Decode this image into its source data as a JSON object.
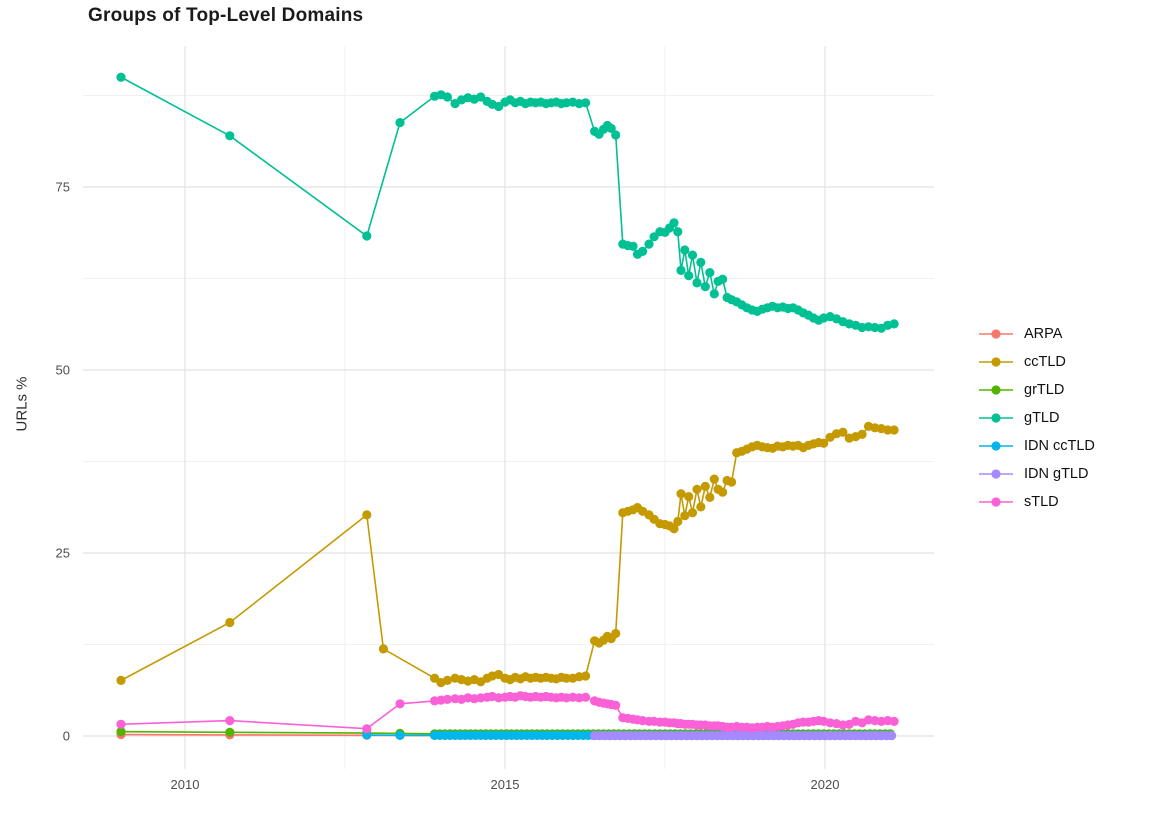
{
  "chart_data": {
    "type": "line",
    "markers": true,
    "title": "Groups of Top-Level Domains",
    "xlabel": "",
    "ylabel": "URLs %",
    "x_ticks": [
      2010,
      2015,
      2020
    ],
    "x_minor_ticks": [
      2012.5,
      2017.5
    ],
    "y_ticks": [
      0,
      25,
      50,
      75
    ],
    "y_minor_ticks": [
      12.5,
      37.5,
      62.5,
      87.5
    ],
    "xlim": [
      2008.4,
      2021.7
    ],
    "ylim": [
      -4.5,
      94.3
    ],
    "grid": true,
    "legend_position": "right",
    "series": [
      {
        "name": "ARPA",
        "color": "#F8766D",
        "points": [
          [
            2009.0,
            0.2
          ],
          [
            2010.7,
            0.15
          ],
          [
            2012.84,
            0.1
          ],
          [
            2013.36,
            0.08
          ]
        ],
        "flat_segment": {
          "from": 2013.9,
          "to": 2016.3,
          "step": 0.08,
          "value": 0.08
        }
      },
      {
        "name": "ccTLD",
        "color": "#C49A00",
        "points": [
          [
            2009.0,
            7.6
          ],
          [
            2010.7,
            15.5
          ],
          [
            2012.84,
            30.2
          ],
          [
            2013.1,
            11.9
          ],
          [
            2013.9,
            7.9
          ],
          [
            2014.0,
            7.3
          ],
          [
            2014.1,
            7.6
          ],
          [
            2014.22,
            7.9
          ],
          [
            2014.32,
            7.7
          ],
          [
            2014.42,
            7.5
          ],
          [
            2014.52,
            7.7
          ],
          [
            2014.62,
            7.4
          ],
          [
            2014.72,
            7.9
          ],
          [
            2014.8,
            8.2
          ],
          [
            2014.9,
            8.4
          ],
          [
            2015.0,
            7.9
          ],
          [
            2015.08,
            7.7
          ],
          [
            2015.16,
            8.0
          ],
          [
            2015.24,
            7.8
          ],
          [
            2015.32,
            8.1
          ],
          [
            2015.4,
            7.9
          ],
          [
            2015.48,
            8.0
          ],
          [
            2015.56,
            7.9
          ],
          [
            2015.64,
            8.0
          ],
          [
            2015.72,
            7.9
          ],
          [
            2015.8,
            7.8
          ],
          [
            2015.88,
            8.0
          ],
          [
            2015.96,
            7.9
          ],
          [
            2016.06,
            7.9
          ],
          [
            2016.16,
            8.1
          ],
          [
            2016.26,
            8.2
          ],
          [
            2016.4,
            13.0
          ],
          [
            2016.47,
            12.7
          ],
          [
            2016.54,
            13.1
          ],
          [
            2016.6,
            13.6
          ],
          [
            2016.66,
            13.3
          ],
          [
            2016.73,
            14.0
          ],
          [
            2016.84,
            30.5
          ],
          [
            2016.92,
            30.7
          ],
          [
            2017.0,
            30.9
          ],
          [
            2017.07,
            31.2
          ],
          [
            2017.15,
            30.7
          ],
          [
            2017.25,
            30.2
          ],
          [
            2017.33,
            29.6
          ],
          [
            2017.42,
            29.0
          ],
          [
            2017.5,
            28.9
          ],
          [
            2017.57,
            28.7
          ],
          [
            2017.64,
            28.3
          ],
          [
            2017.7,
            29.3
          ],
          [
            2017.75,
            33.1
          ],
          [
            2017.81,
            30.1
          ],
          [
            2017.87,
            32.7
          ],
          [
            2017.93,
            30.5
          ],
          [
            2018.0,
            33.7
          ],
          [
            2018.06,
            31.3
          ],
          [
            2018.13,
            34.1
          ],
          [
            2018.2,
            32.6
          ],
          [
            2018.27,
            35.1
          ],
          [
            2018.33,
            33.7
          ],
          [
            2018.4,
            33.3
          ],
          [
            2018.47,
            34.9
          ],
          [
            2018.54,
            34.7
          ],
          [
            2018.62,
            38.7
          ],
          [
            2018.7,
            38.9
          ],
          [
            2018.78,
            39.2
          ],
          [
            2018.86,
            39.5
          ],
          [
            2018.94,
            39.7
          ],
          [
            2019.02,
            39.5
          ],
          [
            2019.1,
            39.4
          ],
          [
            2019.18,
            39.3
          ],
          [
            2019.26,
            39.6
          ],
          [
            2019.34,
            39.5
          ],
          [
            2019.42,
            39.7
          ],
          [
            2019.5,
            39.6
          ],
          [
            2019.58,
            39.7
          ],
          [
            2019.66,
            39.4
          ],
          [
            2019.74,
            39.7
          ],
          [
            2019.82,
            39.9
          ],
          [
            2019.9,
            40.1
          ],
          [
            2019.98,
            40.0
          ],
          [
            2020.08,
            40.8
          ],
          [
            2020.18,
            41.3
          ],
          [
            2020.28,
            41.5
          ],
          [
            2020.38,
            40.7
          ],
          [
            2020.48,
            40.9
          ],
          [
            2020.58,
            41.2
          ],
          [
            2020.68,
            42.3
          ],
          [
            2020.78,
            42.1
          ],
          [
            2020.88,
            42.0
          ],
          [
            2020.98,
            41.8
          ],
          [
            2021.08,
            41.8
          ]
        ]
      },
      {
        "name": "grTLD",
        "color": "#53B400",
        "points": [
          [
            2009.0,
            0.6
          ],
          [
            2010.7,
            0.5
          ],
          [
            2012.84,
            0.4
          ],
          [
            2013.36,
            0.35
          ]
        ],
        "flat_segment": {
          "from": 2013.9,
          "to": 2021.08,
          "step": 0.08,
          "value": 0.3
        }
      },
      {
        "name": "gTLD",
        "color": "#00C094",
        "points": [
          [
            2009.0,
            90.0
          ],
          [
            2010.7,
            82.0
          ],
          [
            2012.84,
            68.3
          ],
          [
            2013.36,
            83.8
          ],
          [
            2013.9,
            87.4
          ],
          [
            2014.0,
            87.6
          ],
          [
            2014.1,
            87.3
          ],
          [
            2014.22,
            86.4
          ],
          [
            2014.32,
            86.9
          ],
          [
            2014.42,
            87.2
          ],
          [
            2014.52,
            87.0
          ],
          [
            2014.62,
            87.3
          ],
          [
            2014.72,
            86.7
          ],
          [
            2014.8,
            86.3
          ],
          [
            2014.9,
            86.0
          ],
          [
            2015.0,
            86.6
          ],
          [
            2015.08,
            86.9
          ],
          [
            2015.16,
            86.5
          ],
          [
            2015.24,
            86.7
          ],
          [
            2015.32,
            86.4
          ],
          [
            2015.4,
            86.6
          ],
          [
            2015.48,
            86.5
          ],
          [
            2015.56,
            86.6
          ],
          [
            2015.64,
            86.4
          ],
          [
            2015.72,
            86.5
          ],
          [
            2015.8,
            86.6
          ],
          [
            2015.88,
            86.4
          ],
          [
            2015.96,
            86.5
          ],
          [
            2016.06,
            86.6
          ],
          [
            2016.16,
            86.4
          ],
          [
            2016.26,
            86.5
          ],
          [
            2016.4,
            82.6
          ],
          [
            2016.47,
            82.2
          ],
          [
            2016.54,
            82.9
          ],
          [
            2016.6,
            83.4
          ],
          [
            2016.66,
            83.0
          ],
          [
            2016.73,
            82.1
          ],
          [
            2016.84,
            67.2
          ],
          [
            2016.92,
            67.0
          ],
          [
            2017.0,
            66.9
          ],
          [
            2017.07,
            65.8
          ],
          [
            2017.15,
            66.2
          ],
          [
            2017.25,
            67.2
          ],
          [
            2017.33,
            68.2
          ],
          [
            2017.42,
            68.9
          ],
          [
            2017.5,
            68.8
          ],
          [
            2017.57,
            69.4
          ],
          [
            2017.64,
            70.1
          ],
          [
            2017.7,
            68.9
          ],
          [
            2017.75,
            63.6
          ],
          [
            2017.81,
            66.4
          ],
          [
            2017.87,
            62.9
          ],
          [
            2017.93,
            65.7
          ],
          [
            2018.0,
            61.9
          ],
          [
            2018.06,
            64.7
          ],
          [
            2018.13,
            61.4
          ],
          [
            2018.2,
            63.3
          ],
          [
            2018.27,
            60.4
          ],
          [
            2018.33,
            62.1
          ],
          [
            2018.4,
            62.4
          ],
          [
            2018.47,
            59.9
          ],
          [
            2018.54,
            59.6
          ],
          [
            2018.62,
            59.3
          ],
          [
            2018.7,
            58.9
          ],
          [
            2018.78,
            58.5
          ],
          [
            2018.86,
            58.2
          ],
          [
            2018.94,
            58.0
          ],
          [
            2019.02,
            58.3
          ],
          [
            2019.1,
            58.5
          ],
          [
            2019.18,
            58.7
          ],
          [
            2019.26,
            58.5
          ],
          [
            2019.34,
            58.6
          ],
          [
            2019.42,
            58.4
          ],
          [
            2019.5,
            58.5
          ],
          [
            2019.58,
            58.2
          ],
          [
            2019.66,
            57.8
          ],
          [
            2019.74,
            57.5
          ],
          [
            2019.82,
            57.1
          ],
          [
            2019.9,
            56.8
          ],
          [
            2019.98,
            57.1
          ],
          [
            2020.08,
            57.3
          ],
          [
            2020.18,
            57.0
          ],
          [
            2020.28,
            56.6
          ],
          [
            2020.38,
            56.3
          ],
          [
            2020.48,
            56.1
          ],
          [
            2020.58,
            55.8
          ],
          [
            2020.68,
            55.9
          ],
          [
            2020.78,
            55.8
          ],
          [
            2020.88,
            55.7
          ],
          [
            2020.98,
            56.1
          ],
          [
            2021.08,
            56.3
          ]
        ]
      },
      {
        "name": "IDN ccTLD",
        "color": "#00B6EB",
        "points": [
          [
            2012.84,
            0.15
          ],
          [
            2013.36,
            0.1
          ]
        ],
        "flat_segment": {
          "from": 2013.9,
          "to": 2021.08,
          "step": 0.08,
          "value": 0.08
        }
      },
      {
        "name": "IDN gTLD",
        "color": "#A58AFF",
        "points": [],
        "flat_segment": {
          "from": 2016.4,
          "to": 2021.08,
          "step": 0.08,
          "value": 0.05
        }
      },
      {
        "name": "sTLD",
        "color": "#FB61D7",
        "points": [
          [
            2009.0,
            1.6
          ],
          [
            2010.7,
            2.1
          ],
          [
            2012.84,
            1.0
          ],
          [
            2013.36,
            4.4
          ],
          [
            2013.9,
            4.8
          ],
          [
            2014.0,
            4.9
          ],
          [
            2014.1,
            5.0
          ],
          [
            2014.22,
            5.1
          ],
          [
            2014.32,
            5.0
          ],
          [
            2014.42,
            5.2
          ],
          [
            2014.52,
            5.1
          ],
          [
            2014.62,
            5.2
          ],
          [
            2014.72,
            5.3
          ],
          [
            2014.8,
            5.4
          ],
          [
            2014.9,
            5.2
          ],
          [
            2015.0,
            5.3
          ],
          [
            2015.08,
            5.4
          ],
          [
            2015.16,
            5.3
          ],
          [
            2015.24,
            5.5
          ],
          [
            2015.32,
            5.4
          ],
          [
            2015.4,
            5.3
          ],
          [
            2015.48,
            5.4
          ],
          [
            2015.56,
            5.3
          ],
          [
            2015.64,
            5.4
          ],
          [
            2015.72,
            5.3
          ],
          [
            2015.8,
            5.2
          ],
          [
            2015.88,
            5.3
          ],
          [
            2015.96,
            5.2
          ],
          [
            2016.06,
            5.3
          ],
          [
            2016.16,
            5.2
          ],
          [
            2016.26,
            5.3
          ],
          [
            2016.4,
            4.8
          ],
          [
            2016.47,
            4.6
          ],
          [
            2016.54,
            4.5
          ],
          [
            2016.6,
            4.4
          ],
          [
            2016.66,
            4.3
          ],
          [
            2016.73,
            4.2
          ],
          [
            2016.84,
            2.5
          ],
          [
            2016.92,
            2.4
          ],
          [
            2017.0,
            2.3
          ],
          [
            2017.07,
            2.2
          ],
          [
            2017.15,
            2.1
          ],
          [
            2017.25,
            2.0
          ],
          [
            2017.33,
            2.0
          ],
          [
            2017.42,
            1.9
          ],
          [
            2017.5,
            1.9
          ],
          [
            2017.57,
            1.8
          ],
          [
            2017.64,
            1.8
          ],
          [
            2017.7,
            1.7
          ],
          [
            2017.75,
            1.7
          ],
          [
            2017.81,
            1.6
          ],
          [
            2017.87,
            1.6
          ],
          [
            2017.93,
            1.6
          ],
          [
            2018.0,
            1.5
          ],
          [
            2018.06,
            1.5
          ],
          [
            2018.13,
            1.5
          ],
          [
            2018.2,
            1.4
          ],
          [
            2018.27,
            1.4
          ],
          [
            2018.33,
            1.4
          ],
          [
            2018.4,
            1.3
          ],
          [
            2018.47,
            1.2
          ],
          [
            2018.54,
            1.2
          ],
          [
            2018.62,
            1.3
          ],
          [
            2018.7,
            1.2
          ],
          [
            2018.78,
            1.2
          ],
          [
            2018.86,
            1.1
          ],
          [
            2018.94,
            1.2
          ],
          [
            2019.02,
            1.2
          ],
          [
            2019.1,
            1.3
          ],
          [
            2019.18,
            1.2
          ],
          [
            2019.26,
            1.3
          ],
          [
            2019.34,
            1.4
          ],
          [
            2019.42,
            1.5
          ],
          [
            2019.5,
            1.6
          ],
          [
            2019.58,
            1.8
          ],
          [
            2019.66,
            1.9
          ],
          [
            2019.74,
            1.9
          ],
          [
            2019.82,
            2.0
          ],
          [
            2019.9,
            2.1
          ],
          [
            2019.98,
            2.0
          ],
          [
            2020.08,
            1.8
          ],
          [
            2020.18,
            1.7
          ],
          [
            2020.28,
            1.5
          ],
          [
            2020.38,
            1.6
          ],
          [
            2020.48,
            2.0
          ],
          [
            2020.58,
            1.8
          ],
          [
            2020.68,
            2.2
          ],
          [
            2020.78,
            2.1
          ],
          [
            2020.88,
            2.0
          ],
          [
            2020.98,
            2.1
          ],
          [
            2021.08,
            2.0
          ]
        ]
      }
    ]
  },
  "style": {
    "grid_major_color": "#E2E2E2",
    "grid_minor_color": "#F0F0F0",
    "axis_text_color": "#4d4d4d",
    "title_color": "#1b1b1b",
    "background": "#ffffff"
  }
}
